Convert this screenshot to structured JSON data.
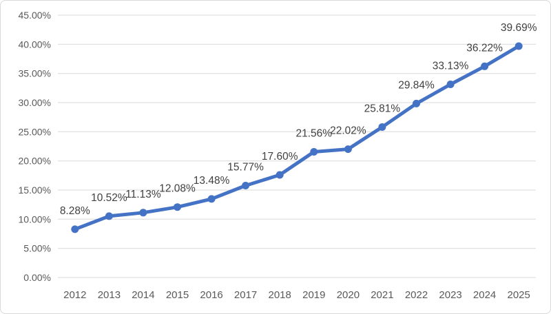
{
  "chart": {
    "title": "",
    "background_color": "#FFFFFF",
    "border_color": "#D9D9D9"
  },
  "chart_data": {
    "type": "line",
    "title": "",
    "xlabel": "",
    "ylabel": "",
    "categories": [
      "2012",
      "2013",
      "2014",
      "2015",
      "2016",
      "2017",
      "2018",
      "2019",
      "2020",
      "2021",
      "2022",
      "2023",
      "2024",
      "2025"
    ],
    "values": [
      8.28,
      10.52,
      11.13,
      12.08,
      13.48,
      15.77,
      17.6,
      21.56,
      22.02,
      25.81,
      29.84,
      33.13,
      36.22,
      39.69
    ],
    "data_labels": [
      "8.28%",
      "10.52%",
      "11.13%",
      "12.08%",
      "13.48%",
      "15.77%",
      "17.60%",
      "21.56%",
      "22.02%",
      "25.81%",
      "29.84%",
      "33.13%",
      "36.22%",
      "39.69%"
    ],
    "ylim": [
      0,
      45
    ],
    "y_tick_interval": 5,
    "y_tick_labels": [
      "0.00%",
      "5.00%",
      "10.00%",
      "15.00%",
      "20.00%",
      "25.00%",
      "30.00%",
      "35.00%",
      "40.00%",
      "45.00%"
    ],
    "grid": true,
    "legend": "none",
    "series_color": "#4472C4",
    "marker": "circle",
    "gridline_color": "#D9D9D9",
    "axis_text_color": "#595959",
    "data_label_color": "#404040"
  }
}
